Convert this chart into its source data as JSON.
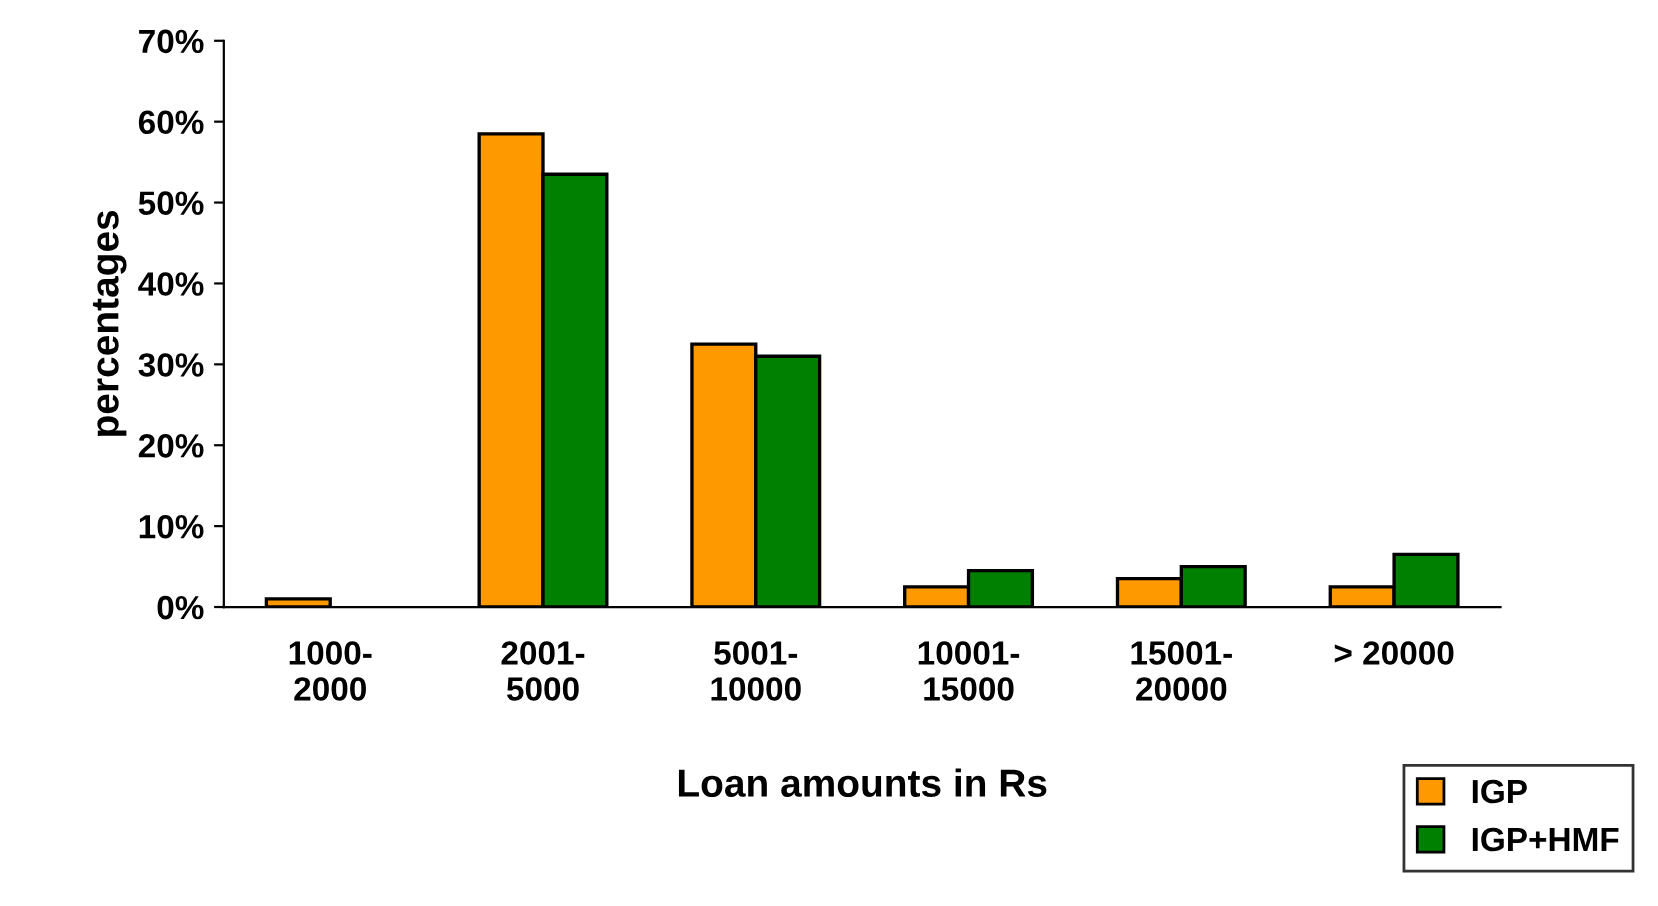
{
  "chart_data": {
    "type": "bar",
    "xlabel": "Loan amounts in Rs",
    "ylabel": "percentages",
    "categories": [
      "1000-\n2000",
      "2001-\n5000",
      "5001-\n10000",
      "10001-\n15000",
      "15001-\n20000",
      "> 20000"
    ],
    "series": [
      {
        "name": "IGP",
        "color": "#ff9900",
        "values": [
          1,
          58.5,
          32.5,
          2.5,
          3.5,
          2.5
        ]
      },
      {
        "name": "IGP+HMF",
        "color": "#008000",
        "values": [
          null,
          53.5,
          31,
          4.5,
          5,
          6.5
        ]
      }
    ],
    "ylim": [
      0,
      70
    ],
    "yticks": [
      {
        "value": 0,
        "label": "0%"
      },
      {
        "value": 10,
        "label": "10%"
      },
      {
        "value": 20,
        "label": "20%"
      },
      {
        "value": 30,
        "label": "30%"
      },
      {
        "value": 40,
        "label": "40%"
      },
      {
        "value": 50,
        "label": "50%"
      },
      {
        "value": 60,
        "label": "60%"
      },
      {
        "value": 70,
        "label": "70%"
      }
    ],
    "grid": false,
    "legend": "bottom right"
  }
}
